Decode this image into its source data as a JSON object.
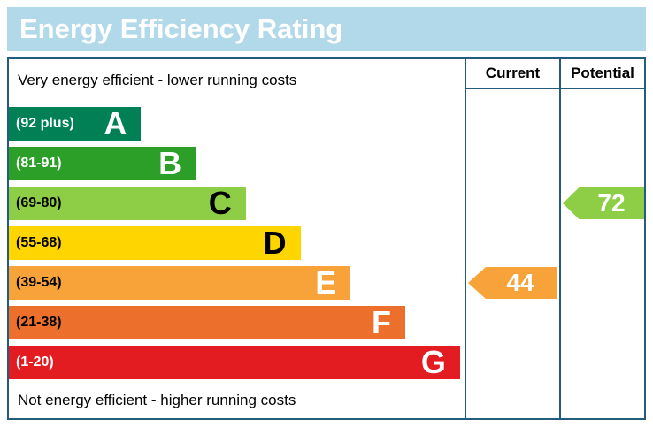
{
  "title": "Energy Efficiency Rating",
  "colors": {
    "title_bg": "#b2d9e9",
    "title_text": "#ffffff",
    "grid": "#225e7c",
    "background": "#ffffff"
  },
  "chart_data": {
    "type": "bar",
    "title": "Energy Efficiency Rating",
    "top_note": "Very energy efficient - lower running costs",
    "bottom_note": "Not energy efficient - higher running costs",
    "columns": {
      "current_label": "Current",
      "potential_label": "Potential"
    },
    "bands": [
      {
        "letter": "A",
        "range": "(92 plus)",
        "min": 92,
        "max": 100,
        "color": "#008054",
        "range_color": "#ffffff",
        "letter_color": "#ffffff",
        "width_pct": 29
      },
      {
        "letter": "B",
        "range": "(81-91)",
        "min": 81,
        "max": 91,
        "color": "#2c9f29",
        "range_color": "#ffffff",
        "letter_color": "#ffffff",
        "width_pct": 41
      },
      {
        "letter": "C",
        "range": "(69-80)",
        "min": 69,
        "max": 80,
        "color": "#8dce46",
        "range_color": "#000000",
        "letter_color": "#000000",
        "width_pct": 52
      },
      {
        "letter": "D",
        "range": "(55-68)",
        "min": 55,
        "max": 68,
        "color": "#ffd500",
        "range_color": "#000000",
        "letter_color": "#000000",
        "width_pct": 64
      },
      {
        "letter": "E",
        "range": "(39-54)",
        "min": 39,
        "max": 54,
        "color": "#f7a33a",
        "range_color": "#000000",
        "letter_color": "#ffffff",
        "width_pct": 75
      },
      {
        "letter": "F",
        "range": "(21-38)",
        "min": 21,
        "max": 38,
        "color": "#ec702c",
        "range_color": "#000000",
        "letter_color": "#ffffff",
        "width_pct": 87
      },
      {
        "letter": "G",
        "range": "(1-20)",
        "min": 1,
        "max": 20,
        "color": "#e31c22",
        "range_color": "#ffffff",
        "letter_color": "#ffffff",
        "width_pct": 99
      }
    ],
    "current": {
      "value": 44,
      "band": "E",
      "arrow_color": "#f7a33a",
      "value_color": "#ffffff"
    },
    "potential": {
      "value": 72,
      "band": "C",
      "arrow_color": "#8dce46",
      "value_color": "#ffffff"
    }
  }
}
